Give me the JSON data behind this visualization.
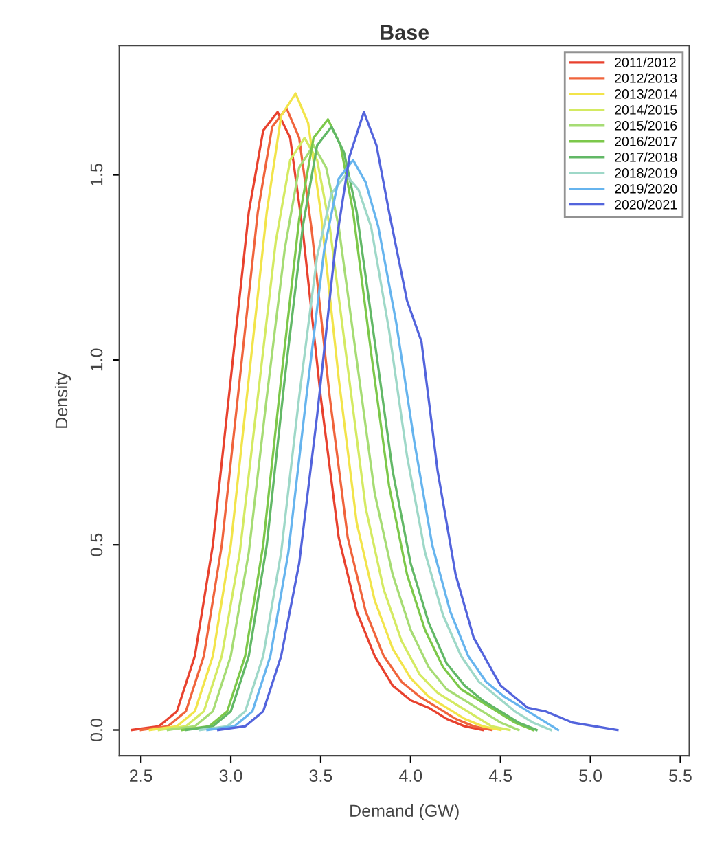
{
  "chart_data": {
    "type": "line",
    "title": "Base",
    "xlabel": "Demand (GW)",
    "ylabel": "Density",
    "xlim": [
      2.38,
      5.55
    ],
    "ylim": [
      -0.07,
      1.85
    ],
    "xticks": [
      2.5,
      {
        "value": 3,
        "label": "3.0"
      },
      3.5,
      {
        "value": 4,
        "label": "4.0"
      },
      4.5,
      {
        "value": 5,
        "label": "5.0"
      },
      5.5
    ],
    "yticks": [
      {
        "value": 0,
        "label": "0.0"
      },
      0.5,
      {
        "value": 1,
        "label": "1.0"
      },
      1.5
    ],
    "grid": false,
    "legend": "top right",
    "marker": "none",
    "line_style": "solid",
    "series": [
      {
        "name": "2011/2012",
        "color": "#e8412e",
        "x": [
          2.45,
          2.6,
          2.7,
          2.8,
          2.9,
          3.0,
          3.1,
          3.18,
          3.26,
          3.33,
          3.4,
          3.5,
          3.6,
          3.7,
          3.8,
          3.9,
          4.0,
          4.1,
          4.2,
          4.3,
          4.4
        ],
        "values": [
          0,
          0.01,
          0.05,
          0.2,
          0.5,
          0.95,
          1.4,
          1.62,
          1.67,
          1.6,
          1.35,
          0.9,
          0.52,
          0.32,
          0.2,
          0.12,
          0.08,
          0.06,
          0.03,
          0.01,
          0
        ]
      },
      {
        "name": "2012/2013",
        "color": "#f0643c",
        "x": [
          2.5,
          2.65,
          2.75,
          2.85,
          2.95,
          3.05,
          3.15,
          3.23,
          3.31,
          3.38,
          3.45,
          3.55,
          3.65,
          3.75,
          3.85,
          3.95,
          4.05,
          4.15,
          4.25,
          4.35,
          4.45
        ],
        "values": [
          0,
          0.01,
          0.05,
          0.2,
          0.5,
          0.95,
          1.4,
          1.63,
          1.68,
          1.6,
          1.35,
          0.9,
          0.52,
          0.32,
          0.2,
          0.13,
          0.09,
          0.06,
          0.03,
          0.01,
          0
        ]
      },
      {
        "name": "2013/2014",
        "color": "#f2e44a",
        "x": [
          2.55,
          2.7,
          2.8,
          2.9,
          3.0,
          3.1,
          3.2,
          3.28,
          3.36,
          3.43,
          3.5,
          3.6,
          3.7,
          3.8,
          3.9,
          4.0,
          4.1,
          4.2,
          4.3,
          4.4,
          4.5
        ],
        "values": [
          0,
          0.01,
          0.05,
          0.2,
          0.5,
          0.95,
          1.4,
          1.66,
          1.72,
          1.64,
          1.4,
          0.95,
          0.56,
          0.35,
          0.22,
          0.14,
          0.09,
          0.06,
          0.03,
          0.01,
          0
        ]
      },
      {
        "name": "2014/2015",
        "color": "#d4ea62",
        "x": [
          2.6,
          2.75,
          2.85,
          2.95,
          3.05,
          3.15,
          3.25,
          3.33,
          3.41,
          3.48,
          3.55,
          3.65,
          3.75,
          3.85,
          3.95,
          4.05,
          4.15,
          4.25,
          4.35,
          4.45,
          4.55
        ],
        "values": [
          0,
          0.01,
          0.05,
          0.2,
          0.48,
          0.9,
          1.32,
          1.54,
          1.6,
          1.54,
          1.36,
          0.98,
          0.6,
          0.38,
          0.24,
          0.15,
          0.1,
          0.07,
          0.04,
          0.01,
          0
        ]
      },
      {
        "name": "2015/2016",
        "color": "#a6dc74",
        "x": [
          2.65,
          2.8,
          2.9,
          3.0,
          3.1,
          3.2,
          3.3,
          3.38,
          3.46,
          3.53,
          3.6,
          3.7,
          3.8,
          3.9,
          4.0,
          4.1,
          4.2,
          4.3,
          4.4,
          4.5,
          4.6
        ],
        "values": [
          0,
          0.01,
          0.05,
          0.2,
          0.48,
          0.9,
          1.3,
          1.52,
          1.58,
          1.52,
          1.36,
          1.0,
          0.64,
          0.42,
          0.27,
          0.17,
          0.11,
          0.08,
          0.05,
          0.02,
          0
        ]
      },
      {
        "name": "2016/2017",
        "color": "#7cc84a",
        "x": [
          2.73,
          2.88,
          2.98,
          3.08,
          3.18,
          3.28,
          3.38,
          3.46,
          3.54,
          3.61,
          3.68,
          3.78,
          3.88,
          3.98,
          4.08,
          4.18,
          4.28,
          4.38,
          4.48,
          4.58,
          4.68
        ],
        "values": [
          0,
          0.01,
          0.05,
          0.2,
          0.5,
          0.95,
          1.38,
          1.6,
          1.65,
          1.58,
          1.4,
          1.02,
          0.66,
          0.42,
          0.27,
          0.17,
          0.11,
          0.08,
          0.05,
          0.02,
          0
        ]
      },
      {
        "name": "2017/2018",
        "color": "#62b866",
        "x": [
          2.75,
          2.9,
          3.0,
          3.1,
          3.2,
          3.3,
          3.4,
          3.48,
          3.56,
          3.63,
          3.7,
          3.8,
          3.9,
          4.0,
          4.1,
          4.2,
          4.3,
          4.4,
          4.5,
          4.6,
          4.7
        ],
        "values": [
          0,
          0.01,
          0.05,
          0.2,
          0.5,
          0.95,
          1.36,
          1.58,
          1.63,
          1.56,
          1.4,
          1.05,
          0.7,
          0.45,
          0.29,
          0.18,
          0.12,
          0.08,
          0.05,
          0.02,
          0
        ]
      },
      {
        "name": "2018/2019",
        "color": "#9ed8c8",
        "x": [
          2.83,
          2.98,
          3.08,
          3.18,
          3.28,
          3.38,
          3.48,
          3.56,
          3.64,
          3.71,
          3.78,
          3.88,
          3.98,
          4.08,
          4.18,
          4.28,
          4.38,
          4.48,
          4.58,
          4.68,
          4.78
        ],
        "values": [
          0,
          0.01,
          0.05,
          0.2,
          0.48,
          0.9,
          1.28,
          1.45,
          1.5,
          1.46,
          1.36,
          1.08,
          0.74,
          0.48,
          0.31,
          0.2,
          0.13,
          0.09,
          0.05,
          0.02,
          0
        ]
      },
      {
        "name": "2019/2020",
        "color": "#66b4ee",
        "x": [
          2.87,
          3.02,
          3.12,
          3.22,
          3.32,
          3.42,
          3.52,
          3.6,
          3.68,
          3.75,
          3.82,
          3.92,
          4.02,
          4.12,
          4.22,
          4.32,
          4.42,
          4.52,
          4.62,
          4.72,
          4.82
        ],
        "values": [
          0,
          0.01,
          0.05,
          0.2,
          0.48,
          0.9,
          1.3,
          1.49,
          1.54,
          1.48,
          1.36,
          1.1,
          0.78,
          0.5,
          0.32,
          0.2,
          0.13,
          0.09,
          0.06,
          0.03,
          0
        ]
      },
      {
        "name": "2020/2021",
        "color": "#5364dc",
        "x": [
          2.93,
          3.08,
          3.18,
          3.28,
          3.38,
          3.48,
          3.58,
          3.66,
          3.74,
          3.81,
          3.88,
          3.98,
          4.06,
          4.15,
          4.25,
          4.35,
          4.5,
          4.65,
          4.75,
          4.9,
          5.15
        ],
        "values": [
          0,
          0.01,
          0.05,
          0.2,
          0.45,
          0.85,
          1.3,
          1.55,
          1.67,
          1.58,
          1.4,
          1.16,
          1.05,
          0.7,
          0.42,
          0.25,
          0.12,
          0.06,
          0.05,
          0.02,
          0
        ]
      }
    ]
  }
}
